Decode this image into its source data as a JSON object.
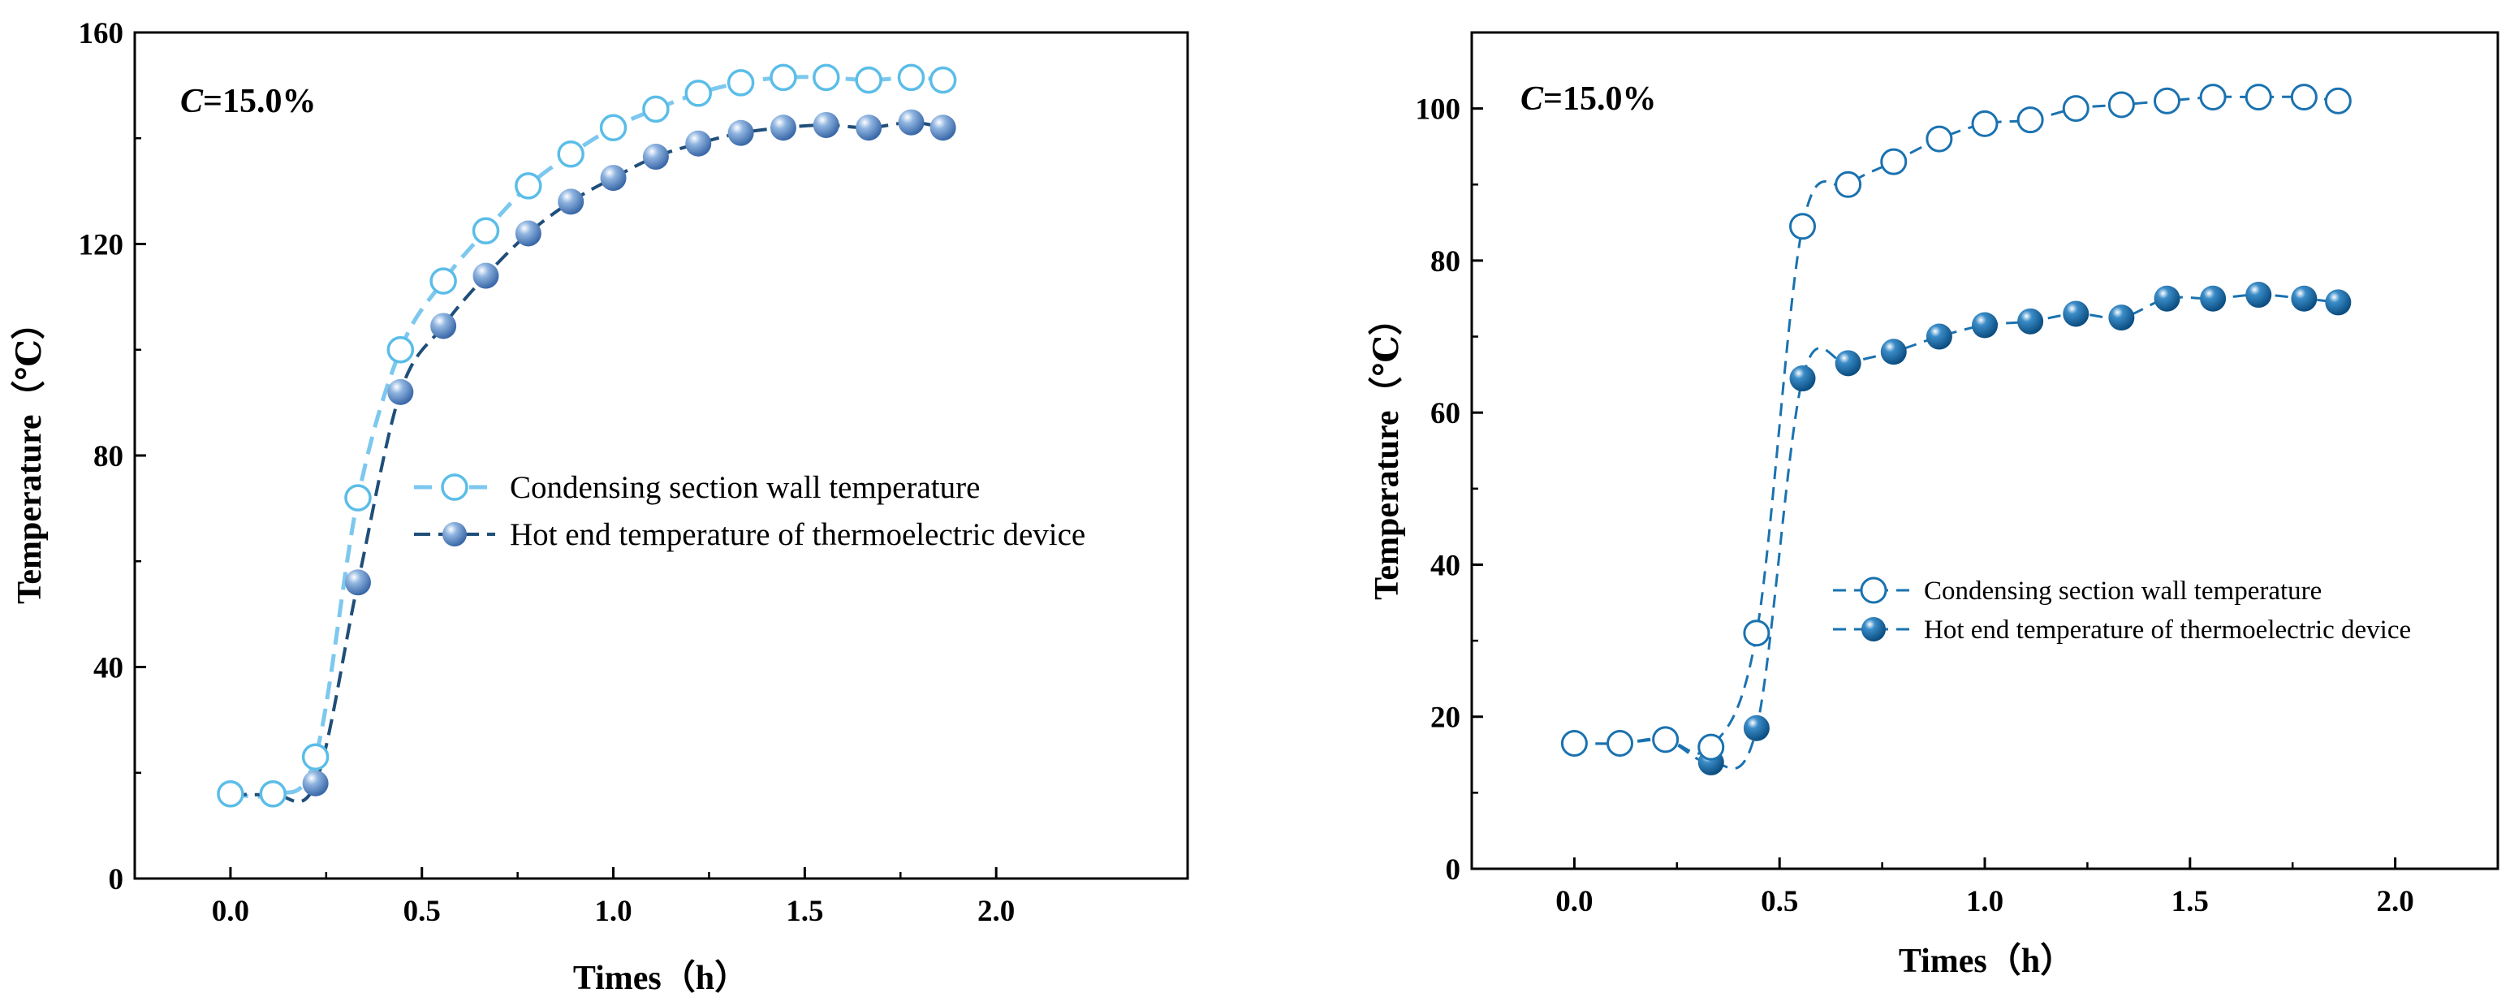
{
  "figure_title": "",
  "chart_data": [
    {
      "type": "line",
      "panel": "left",
      "condition_symbol": "C",
      "condition_value": "=15.0%",
      "xlabel": "Times（h）",
      "ylabel": "Temperature（℃）",
      "xlim": [
        -0.25,
        2.5
      ],
      "ylim": [
        0,
        160
      ],
      "xticks": [
        0.0,
        0.5,
        1.0,
        1.5,
        2.0
      ],
      "xtick_labels": [
        "0.0",
        "0.5",
        "1.0",
        "1.5",
        "2.0"
      ],
      "yticks": [
        0,
        40,
        80,
        120,
        160
      ],
      "ytick_labels": [
        "0",
        "40",
        "80",
        "120",
        "160"
      ],
      "legend_position": "center-right",
      "x": [
        0.0,
        0.111,
        0.222,
        0.333,
        0.444,
        0.556,
        0.667,
        0.778,
        0.889,
        1.0,
        1.111,
        1.222,
        1.333,
        1.444,
        1.556,
        1.667,
        1.778,
        1.861
      ],
      "series": [
        {
          "name": "Condensing section wall temperature",
          "marker": "open-circle",
          "color": "#5bbde8",
          "values": [
            16,
            16,
            23,
            72,
            100,
            113,
            122.5,
            131,
            137,
            142,
            145.5,
            148.5,
            150.5,
            151.5,
            151.5,
            151,
            151.5,
            151
          ]
        },
        {
          "name": "Hot end temperature of thermoelectric device",
          "marker": "filled-sphere",
          "color": "#6a97cf",
          "line_color": "#1f4e79",
          "values": [
            16,
            16,
            18,
            56,
            92,
            104.5,
            114,
            122,
            128,
            132.5,
            136.5,
            139,
            141,
            142,
            142.5,
            142,
            143,
            142
          ]
        }
      ]
    },
    {
      "type": "line",
      "panel": "right",
      "condition_symbol": "C",
      "condition_value": "=15.0%",
      "xlabel": "Times（h）",
      "ylabel": "Temperature（℃）",
      "xlim": [
        -0.25,
        2.25
      ],
      "ylim": [
        0,
        110
      ],
      "xticks": [
        0.0,
        0.5,
        1.0,
        1.5,
        2.0
      ],
      "xtick_labels": [
        "0.0",
        "0.5",
        "1.0",
        "1.5",
        "2.0"
      ],
      "yticks": [
        0,
        20,
        40,
        60,
        80,
        100
      ],
      "ytick_labels": [
        "0",
        "20",
        "40",
        "60",
        "80",
        "100"
      ],
      "legend_position": "center-right",
      "x": [
        0.0,
        0.111,
        0.222,
        0.333,
        0.444,
        0.556,
        0.667,
        0.778,
        0.889,
        1.0,
        1.111,
        1.222,
        1.333,
        1.444,
        1.556,
        1.667,
        1.778,
        1.861
      ],
      "series": [
        {
          "name": "Condensing section wall temperature",
          "marker": "open-circle",
          "color": "#1a72b0",
          "values": [
            16.5,
            16.5,
            17,
            16,
            31,
            84.5,
            90,
            93,
            96,
            98,
            98.5,
            100,
            100.5,
            101,
            101.5,
            101.5,
            101.5,
            101
          ]
        },
        {
          "name": "Hot end temperature of thermoelectric device",
          "marker": "filled-sphere",
          "color": "#1a72b0",
          "line_color": "#1a72b0",
          "values": [
            16.5,
            16.5,
            17,
            14,
            18.5,
            64.5,
            66.5,
            68,
            70,
            71.5,
            72,
            73,
            72.5,
            75,
            75,
            75.5,
            75,
            74.5
          ]
        }
      ]
    }
  ]
}
